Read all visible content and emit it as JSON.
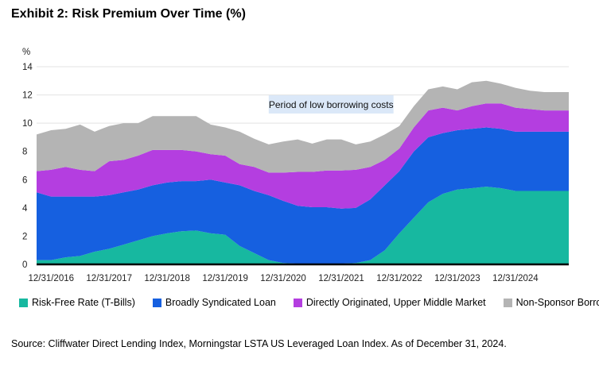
{
  "title": "Exhibit 2: Risk Premium Over Time (%)",
  "source": "Source: Cliffwater Direct Lending Index, Morningstar LSTA US Leveraged Loan Index. As of December 31, 2024.",
  "chart_data": {
    "type": "area",
    "stacked": true,
    "y_unit_label": "%",
    "ylim": [
      0,
      14
    ],
    "y_ticks": [
      0,
      2,
      4,
      6,
      8,
      10,
      12,
      14
    ],
    "xlim": [
      2016.0,
      2025.0
    ],
    "x_ticks": [
      {
        "x": 2016.0,
        "label": "12/31/2016"
      },
      {
        "x": 2017.0,
        "label": "12/31/2017"
      },
      {
        "x": 2018.0,
        "label": "12/31/2018"
      },
      {
        "x": 2019.0,
        "label": "12/31/2019"
      },
      {
        "x": 2020.0,
        "label": "12/31/2020"
      },
      {
        "x": 2021.0,
        "label": "12/31/2021"
      },
      {
        "x": 2022.0,
        "label": "12/31/2022"
      },
      {
        "x": 2023.0,
        "label": "12/31/2023"
      },
      {
        "x": 2024.0,
        "label": "12/31/2024"
      }
    ],
    "grid": true,
    "legend_position": "bottom",
    "annotation": {
      "text": "Period of low borrowing costs",
      "x_range": [
        2020.0,
        2022.0
      ]
    },
    "x": [
      2015.75,
      2016.0,
      2016.25,
      2016.5,
      2016.75,
      2017.0,
      2017.25,
      2017.5,
      2017.75,
      2018.0,
      2018.25,
      2018.5,
      2018.75,
      2019.0,
      2019.25,
      2019.5,
      2019.75,
      2020.0,
      2020.25,
      2020.5,
      2020.75,
      2021.0,
      2021.25,
      2021.5,
      2021.75,
      2022.0,
      2022.25,
      2022.5,
      2022.75,
      2023.0,
      2023.25,
      2023.5,
      2023.75,
      2024.0,
      2024.25,
      2024.5,
      2024.75,
      2024.92
    ],
    "series": [
      {
        "name": "Risk-Free Rate (T-Bills)",
        "color": "#17b8a0",
        "values": [
          0.3,
          0.3,
          0.5,
          0.6,
          0.9,
          1.1,
          1.4,
          1.7,
          2.0,
          2.2,
          2.35,
          2.4,
          2.2,
          2.1,
          1.3,
          0.8,
          0.3,
          0.1,
          0.05,
          0.05,
          0.05,
          0.05,
          0.1,
          0.3,
          1.0,
          2.2,
          3.3,
          4.4,
          5.0,
          5.3,
          5.4,
          5.5,
          5.4,
          5.2,
          5.2,
          5.2,
          5.2,
          5.2
        ]
      },
      {
        "name": "Broadly Syndicated Loan",
        "color": "#1660e0",
        "values": [
          4.8,
          4.5,
          4.3,
          4.2,
          3.9,
          3.8,
          3.7,
          3.6,
          3.6,
          3.6,
          3.55,
          3.5,
          3.8,
          3.7,
          4.3,
          4.4,
          4.6,
          4.4,
          4.1,
          4.0,
          4.0,
          3.9,
          3.9,
          4.3,
          4.6,
          4.4,
          4.7,
          4.6,
          4.3,
          4.2,
          4.2,
          4.2,
          4.2,
          4.2,
          4.2,
          4.2,
          4.2,
          4.2
        ]
      },
      {
        "name": "Directly Originated, Upper Middle Market",
        "color": "#b43ee0",
        "values": [
          1.5,
          1.9,
          2.1,
          1.9,
          1.8,
          2.4,
          2.3,
          2.4,
          2.5,
          2.3,
          2.2,
          2.1,
          1.8,
          1.9,
          1.5,
          1.7,
          1.6,
          2.0,
          2.4,
          2.5,
          2.6,
          2.7,
          2.7,
          2.3,
          1.8,
          1.6,
          1.7,
          1.9,
          1.8,
          1.4,
          1.6,
          1.7,
          1.8,
          1.7,
          1.6,
          1.5,
          1.5,
          1.5
        ]
      },
      {
        "name": "Non-Sponsor Borrowers",
        "color": "#b4b4b4",
        "values": [
          2.6,
          2.8,
          2.7,
          3.2,
          2.8,
          2.5,
          2.6,
          2.3,
          2.4,
          2.4,
          2.4,
          2.5,
          2.1,
          2.0,
          2.3,
          2.0,
          2.0,
          2.2,
          2.3,
          2.0,
          2.2,
          2.2,
          1.8,
          1.8,
          1.8,
          1.6,
          1.5,
          1.5,
          1.5,
          1.5,
          1.7,
          1.6,
          1.4,
          1.4,
          1.3,
          1.3,
          1.3,
          1.3
        ]
      }
    ]
  }
}
